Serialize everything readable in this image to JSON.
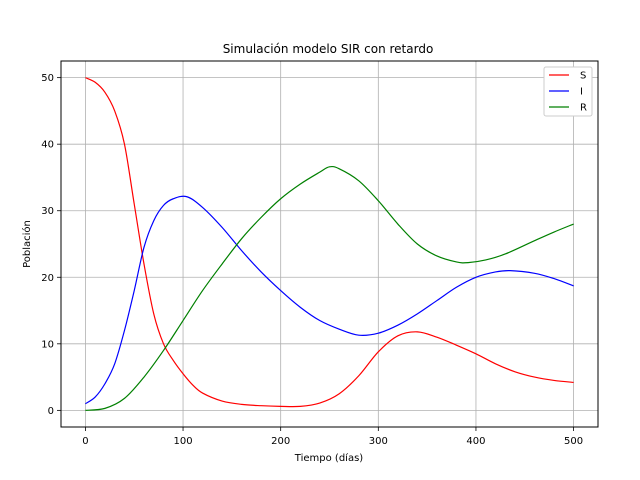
{
  "chart_data": {
    "type": "line",
    "title": "Simulación modelo SIR con retardo",
    "xlabel": "Tiempo (días)",
    "ylabel": "Población",
    "xlim": [
      -25,
      525
    ],
    "ylim": [
      -2.5,
      52.5
    ],
    "xticks": [
      0,
      100,
      200,
      300,
      400,
      500
    ],
    "yticks": [
      0,
      10,
      20,
      30,
      40,
      50
    ],
    "grid": true,
    "legend_position": "top-right",
    "series": [
      {
        "name": "S",
        "color": "#ff0000",
        "x": [
          0,
          10,
          20,
          30,
          40,
          50,
          60,
          70,
          80,
          90,
          100,
          110,
          120,
          140,
          160,
          180,
          200,
          220,
          240,
          260,
          280,
          300,
          320,
          340,
          360,
          380,
          400,
          420,
          440,
          460,
          480,
          500
        ],
        "y": [
          50,
          49.3,
          47.8,
          45,
          40,
          31,
          22,
          14.5,
          10,
          7.5,
          5.5,
          3.8,
          2.6,
          1.4,
          0.9,
          0.7,
          0.6,
          0.6,
          1.1,
          2.5,
          5.2,
          8.8,
          11.2,
          11.8,
          11.0,
          9.8,
          8.5,
          7.0,
          5.8,
          5.0,
          4.5,
          4.2
        ]
      },
      {
        "name": "I",
        "color": "#0000ff",
        "x": [
          0,
          10,
          20,
          30,
          40,
          50,
          60,
          70,
          80,
          90,
          104,
          120,
          140,
          160,
          180,
          200,
          220,
          240,
          260,
          280,
          300,
          320,
          340,
          360,
          380,
          400,
          420,
          435,
          460,
          480,
          500
        ],
        "y": [
          1,
          2,
          4,
          7,
          12,
          18,
          24.5,
          28.5,
          30.8,
          31.8,
          32.1,
          30.5,
          27.5,
          24,
          20.8,
          18,
          15.5,
          13.5,
          12.2,
          11.3,
          11.6,
          12.8,
          14.5,
          16.5,
          18.5,
          20,
          20.8,
          21,
          20.6,
          19.8,
          18.7
        ]
      },
      {
        "name": "R",
        "color": "#008000",
        "x": [
          0,
          20,
          40,
          60,
          80,
          100,
          120,
          140,
          160,
          180,
          200,
          220,
          240,
          250,
          260,
          280,
          300,
          320,
          340,
          360,
          380,
          392,
          410,
          430,
          460,
          480,
          500
        ],
        "y": [
          0,
          0.3,
          1.8,
          5,
          9,
          13.5,
          18,
          22,
          25.8,
          29,
          31.8,
          34,
          35.8,
          36.6,
          36.3,
          34.5,
          31.5,
          28,
          25,
          23.2,
          22.3,
          22.2,
          22.6,
          23.5,
          25.5,
          26.8,
          28
        ]
      }
    ]
  }
}
